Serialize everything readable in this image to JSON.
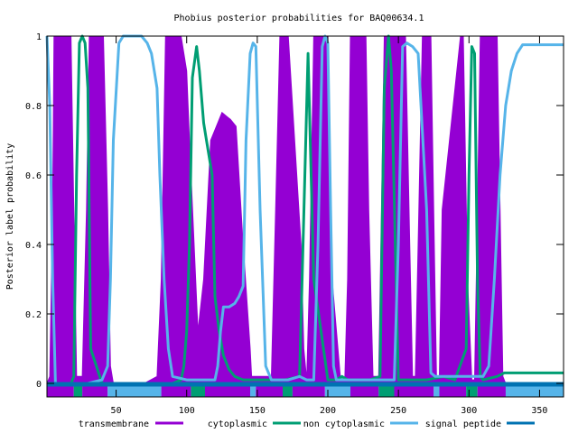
{
  "chart_data": {
    "type": "area",
    "title": "Phobius posterior probabilities for BAQ00634.1",
    "xlabel": "",
    "ylabel": "Posterior label probability",
    "xlim": [
      1,
      367
    ],
    "ylim": [
      0,
      1
    ],
    "x_ticks": [
      50,
      100,
      150,
      200,
      250,
      300,
      350
    ],
    "y_ticks": [
      0,
      0.2,
      0.4,
      0.6,
      0.8,
      1
    ],
    "y_tick_labels": [
      "0",
      "0.2",
      "0.4",
      "0.6",
      "0.8",
      "1"
    ],
    "grid": false,
    "legend_position": "bottom",
    "colors": {
      "transmembrane": "#9400d3",
      "cytoplasmic": "#009e73",
      "non_cytoplasmic": "#56b4e9",
      "signal_peptide": "#0072b2"
    },
    "legend": [
      {
        "label": "transmembrane",
        "color": "#9400d3"
      },
      {
        "label": "cytoplasmic",
        "color": "#009e73"
      },
      {
        "label": "non cytoplasmic",
        "color": "#56b4e9"
      },
      {
        "label": "signal peptide",
        "color": "#0072b2"
      }
    ],
    "series": [
      {
        "name": "transmembrane",
        "style": "filled",
        "x": [
          1,
          3,
          5,
          6,
          18,
          20,
          22,
          26,
          29,
          31,
          41,
          44,
          46,
          48,
          50,
          60,
          70,
          79,
          82,
          85,
          88,
          96,
          98,
          100,
          102,
          108,
          112,
          117,
          122,
          125,
          128,
          131,
          135,
          140,
          145,
          146,
          160,
          163,
          166,
          168,
          172,
          181,
          183,
          185,
          187,
          190,
          198,
          200,
          203,
          209,
          212,
          214,
          216,
          218,
          227,
          229,
          232,
          236,
          238,
          240,
          242,
          255,
          258,
          260,
          262,
          264,
          267,
          273,
          275,
          277,
          279,
          281,
          294,
          296,
          299,
          302,
          304,
          306,
          308,
          320,
          322,
          324,
          326,
          328,
          340,
          367
        ],
        "y": [
          0,
          0.02,
          0.5,
          1,
          1,
          0.5,
          0.02,
          0.02,
          0.5,
          1,
          1,
          0.5,
          0.05,
          0,
          0,
          0,
          0,
          0.02,
          0.3,
          1,
          1,
          1,
          0.95,
          0.9,
          0.7,
          0.15,
          0.3,
          0.7,
          0.75,
          0.78,
          0.77,
          0.76,
          0.74,
          0.4,
          0.1,
          0.02,
          0.02,
          0.5,
          1,
          1,
          1,
          0.4,
          0.1,
          0.01,
          0.3,
          1,
          1,
          1,
          0.3,
          0.01,
          0.01,
          0.3,
          1,
          1,
          1,
          0.5,
          0.02,
          0.02,
          0.5,
          1,
          1,
          1,
          0.4,
          0.02,
          0.02,
          0.4,
          1,
          1,
          0.5,
          0.02,
          0.02,
          0.5,
          1,
          1,
          0.3,
          0.01,
          0.01,
          0.5,
          1,
          1,
          0.5,
          0.02,
          0,
          0,
          0,
          0
        ]
      },
      {
        "name": "cytoplasmic",
        "style": "line",
        "x": [
          1,
          5,
          18,
          20,
          22,
          24,
          26,
          28,
          30,
          32,
          40,
          60,
          80,
          90,
          96,
          98,
          100,
          102,
          104,
          107,
          109,
          112,
          114,
          118,
          120,
          123,
          126,
          130,
          134,
          140,
          145,
          150,
          160,
          165,
          170,
          180,
          186,
          190,
          200,
          206,
          210,
          214,
          220,
          230,
          237,
          240,
          243,
          245,
          250,
          260,
          270,
          282,
          290,
          298,
          300,
          302,
          304,
          306,
          308,
          310,
          320,
          325,
          330,
          350,
          367
        ],
        "y": [
          0,
          0,
          0,
          0.02,
          0.6,
          0.98,
          1,
          0.98,
          0.85,
          0.1,
          0,
          0,
          0,
          0,
          0.01,
          0.05,
          0.15,
          0.4,
          0.88,
          0.97,
          0.9,
          0.75,
          0.7,
          0.6,
          0.25,
          0.15,
          0.08,
          0.04,
          0.02,
          0.01,
          0.01,
          0.01,
          0.01,
          0.01,
          0.01,
          0.02,
          0.95,
          0.3,
          0.01,
          0.01,
          0.02,
          0.01,
          0.01,
          0.01,
          0.02,
          0.85,
          1,
          0.9,
          0.01,
          0.01,
          0.01,
          0.02,
          0.01,
          0.1,
          0.6,
          0.97,
          0.95,
          0.3,
          0.02,
          0.01,
          0.02,
          0.03,
          0.03,
          0.03,
          0.03
        ]
      },
      {
        "name": "non cytoplasmic",
        "style": "line",
        "x": [
          1,
          3,
          5,
          7,
          20,
          30,
          40,
          44,
          46,
          48,
          52,
          55,
          58,
          62,
          68,
          72,
          75,
          77,
          79,
          81,
          84,
          87,
          90,
          100,
          110,
          120,
          122,
          124,
          126,
          130,
          134,
          137,
          140,
          142,
          145,
          147,
          149,
          152,
          156,
          160,
          165,
          172,
          180,
          185,
          190,
          193,
          196,
          198,
          200,
          202,
          204,
          206,
          210,
          220,
          230,
          236,
          240,
          247,
          250,
          253,
          256,
          260,
          264,
          270,
          273,
          276,
          280,
          285,
          290,
          300,
          310,
          314,
          318,
          322,
          326,
          330,
          334,
          338,
          345,
          367
        ],
        "y": [
          1,
          0.8,
          0.3,
          0,
          0,
          0,
          0.01,
          0.05,
          0.3,
          0.7,
          0.98,
          1,
          1,
          1,
          1,
          0.98,
          0.95,
          0.9,
          0.85,
          0.6,
          0.3,
          0.1,
          0.02,
          0.01,
          0.01,
          0.01,
          0.05,
          0.15,
          0.22,
          0.22,
          0.23,
          0.25,
          0.28,
          0.7,
          0.95,
          0.98,
          0.97,
          0.5,
          0.05,
          0.01,
          0.01,
          0.01,
          0.02,
          0.01,
          0.01,
          0.4,
          0.97,
          1,
          0.98,
          0.5,
          0.05,
          0.01,
          0.01,
          0.01,
          0.01,
          0.01,
          0.01,
          0.01,
          0.4,
          0.97,
          0.98,
          0.97,
          0.95,
          0.5,
          0.03,
          0.02,
          0.02,
          0.02,
          0.02,
          0.02,
          0.02,
          0.05,
          0.3,
          0.6,
          0.8,
          0.9,
          0.95,
          0.975,
          0.975,
          0.975
        ]
      },
      {
        "name": "signal peptide",
        "style": "line",
        "x": [
          1,
          367
        ],
        "y": [
          0,
          0
        ]
      }
    ],
    "topology_track": [
      {
        "start": 1,
        "end": 20,
        "label": "transmembrane"
      },
      {
        "start": 20,
        "end": 26,
        "label": "cytoplasmic"
      },
      {
        "start": 26,
        "end": 44,
        "label": "transmembrane"
      },
      {
        "start": 44,
        "end": 82,
        "label": "non cytoplasmic"
      },
      {
        "start": 82,
        "end": 103,
        "label": "transmembrane"
      },
      {
        "start": 103,
        "end": 113,
        "label": "cytoplasmic"
      },
      {
        "start": 113,
        "end": 145,
        "label": "transmembrane"
      },
      {
        "start": 145,
        "end": 149,
        "label": "non cytoplasmic"
      },
      {
        "start": 149,
        "end": 168,
        "label": "transmembrane"
      },
      {
        "start": 168,
        "end": 175,
        "label": "cytoplasmic"
      },
      {
        "start": 175,
        "end": 198,
        "label": "transmembrane"
      },
      {
        "start": 198,
        "end": 216,
        "label": "non cytoplasmic"
      },
      {
        "start": 216,
        "end": 236,
        "label": "transmembrane"
      },
      {
        "start": 236,
        "end": 247,
        "label": "cytoplasmic"
      },
      {
        "start": 247,
        "end": 275,
        "label": "transmembrane"
      },
      {
        "start": 275,
        "end": 279,
        "label": "non cytoplasmic"
      },
      {
        "start": 279,
        "end": 298,
        "label": "transmembrane"
      },
      {
        "start": 298,
        "end": 306,
        "label": "cytoplasmic"
      },
      {
        "start": 306,
        "end": 326,
        "label": "transmembrane"
      },
      {
        "start": 326,
        "end": 367,
        "label": "non cytoplasmic"
      }
    ]
  }
}
